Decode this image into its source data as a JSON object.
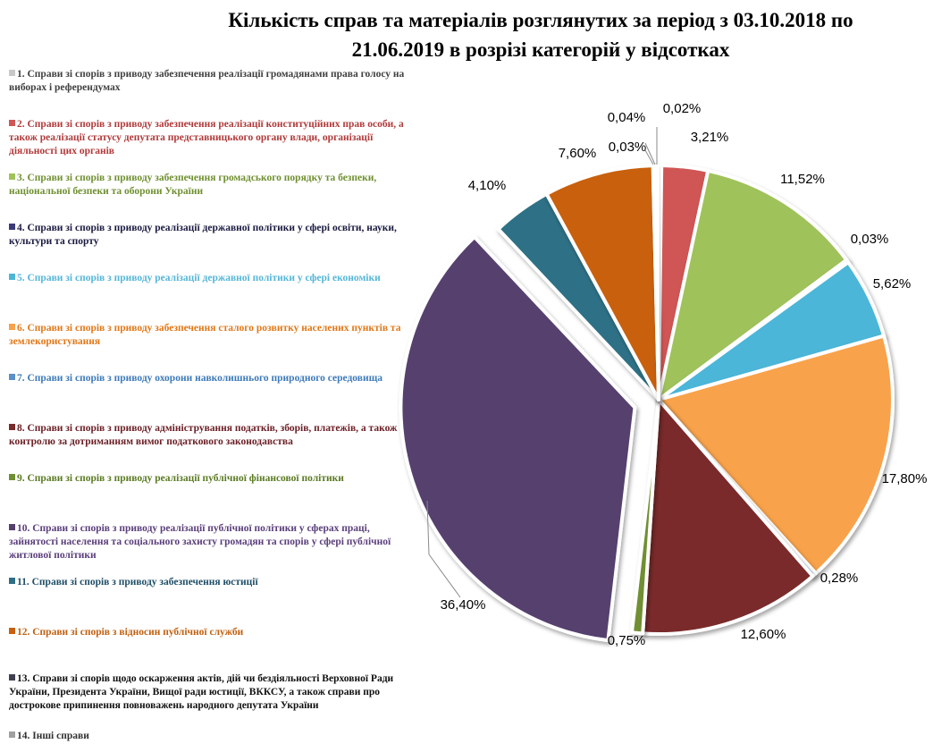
{
  "chart_data": {
    "type": "pie",
    "title_line1": "Кількість справ та матеріалів розглянутих за період з 03.10.2018 по",
    "title_line2": "21.06.2019 в розрізі категорій у відсотках",
    "legend_position": "left",
    "slices": [
      {
        "name": "1. Справи зі спорів з приводу забезпечення реалізації громадянами права голосу на виборах і референдумах",
        "value": 0.02,
        "label": "0,02%",
        "color": "#c9c9c9",
        "legend_color": "#404040"
      },
      {
        "name": "2. Справи зі спорів з приводу забезпечення реалізації конституційних прав особи, а також реалізації статусу депутата представницького органу влади, організації діяльності цих органів",
        "value": 3.21,
        "label": "3,21%",
        "color": "#d05555",
        "legend_color": "#b03a3a"
      },
      {
        "name": "3. Справи зі спорів з приводу забезпечення громадського порядку та безпеки, національної безпеки та оборони України",
        "value": 11.52,
        "label": "11,52%",
        "color": "#9fc25a",
        "legend_color": "#6f8f30"
      },
      {
        "name": "4. Справи зі спорів з приводу реалізації державної політики у сфері освіти, науки, культури та спорту",
        "value": 0.03,
        "label": "0,03%",
        "color": "#3a3a7a",
        "legend_color": "#1a1a40"
      },
      {
        "name": "5. Справи зі спорів з приводу реалізації державної політики у сфері економіки",
        "value": 5.62,
        "label": "5,62%",
        "color": "#4cb6d8",
        "legend_color": "#55b6d8"
      },
      {
        "name": "6. Справи зі спорів з приводу забезпечення сталого розвитку населених пунктів та землекористування",
        "value": 17.8,
        "label": "17,80%",
        "color": "#f8a24c",
        "legend_color": "#e07818"
      },
      {
        "name": "7. Справи зі спорів з приводу охорони навколишнього природного середовища",
        "value": 0.28,
        "label": "0,28%",
        "color": "#5b8fc7",
        "legend_color": "#3c7ab8"
      },
      {
        "name": "8. Справи зі спорів з приводу адміністрування податків, зборів, платежів, а також контролю за дотриманням вимог податкового законодавства",
        "value": 12.6,
        "label": "12,60%",
        "color": "#7a2a2a",
        "legend_color": "#6a1e24"
      },
      {
        "name": "9. Справи зі спорів з приводу реалізації публічної фінансової політики",
        "value": 0.75,
        "label": "0,75%",
        "color": "#6f8f30",
        "legend_color": "#5a7a22"
      },
      {
        "name": "10. Справи зі спорів з приводу реалізації публічної політики у сферах праці, зайнятості населення та соціального захисту громадян та спорів у сфері публічної житлової політики",
        "value": 36.4,
        "label": "36,40%",
        "color": "#55406e",
        "legend_color": "#5a3e7a"
      },
      {
        "name": "11. Справи зі спорів з приводу забезпечення юстиції",
        "value": 4.1,
        "label": "4,10%",
        "color": "#2f6f85",
        "legend_color": "#1e4e66"
      },
      {
        "name": "12. Справи зі спорів з відносин публічної служби",
        "value": 7.6,
        "label": "7,60%",
        "color": "#c8600e",
        "legend_color": "#c06010"
      },
      {
        "name": "13. Справи зі спорів щодо оскарження актів, дій чи бездіяльності Верховної Ради України, Президента України, Вищої ради юстиції, ВККСУ, а також справи про дострокове припинення повноважень народного депутата України",
        "value": 0.03,
        "label": "0,03%",
        "color": "#404050",
        "legend_color": "#101010"
      },
      {
        "name": "14. Інші справи",
        "value": 0.04,
        "label": "0,04%",
        "color": "#a0a0a0",
        "legend_color": "#303030"
      }
    ]
  }
}
